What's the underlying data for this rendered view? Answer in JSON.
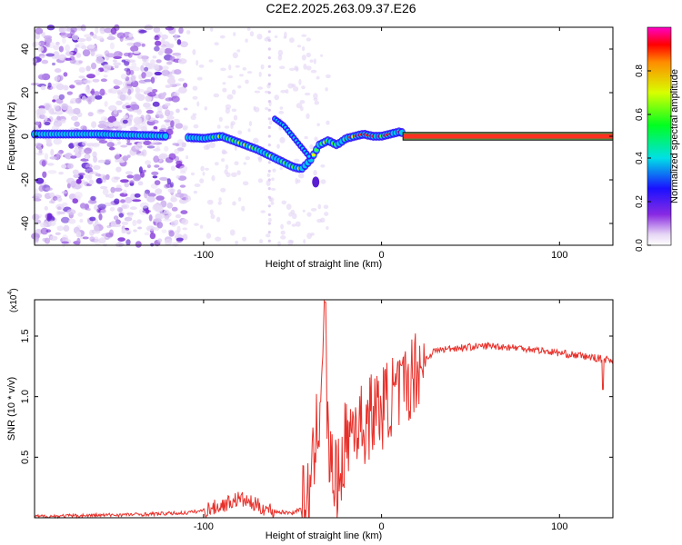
{
  "title": "C2E2.2025.263.09.37.E26",
  "colors": {
    "snr_line": "#e8302a",
    "strong_ridge": "#e82020",
    "frame": "#000000"
  },
  "chart_data": [
    {
      "type": "heatmap",
      "title": "C2E2.2025.263.09.37.E26",
      "xlabel": "Height of straight line (km)",
      "ylabel": "Frequency (Hz)",
      "xlim": [
        -195,
        130
      ],
      "ylim": [
        -50,
        50
      ],
      "xticks": [
        -100,
        0,
        100
      ],
      "yticks": [
        -40,
        -20,
        0,
        20,
        40
      ],
      "colorbar": {
        "label": "Normalized spectral amplitude",
        "range": [
          0,
          1
        ],
        "ticks": [
          "0.0",
          "0.2",
          "0.4",
          "0.6",
          "0.8"
        ],
        "colormap": "rainbow (violet to red)"
      },
      "ridge": {
        "note": "dominant frequency vs height (Hz)",
        "x": [
          -195,
          -160,
          -120,
          -100,
          -90,
          -80,
          -70,
          -60,
          -55,
          -50,
          -45,
          -40,
          -35,
          -30,
          -25,
          -20,
          -15,
          -10,
          -5,
          0,
          5,
          10,
          20,
          130
        ],
        "y": [
          1,
          1,
          0,
          -1,
          0,
          -3,
          -6,
          -10,
          -12,
          -14,
          -15,
          -11,
          -4,
          -2,
          -4,
          -1,
          0,
          1,
          0,
          0,
          1,
          2,
          0,
          0
        ]
      },
      "side_branch": {
        "x": [
          -60,
          -55,
          -50,
          -45,
          -40
        ],
        "y": [
          8,
          5,
          0,
          -5,
          -10
        ]
      },
      "isolated_blob": {
        "x": -37,
        "y": -21
      },
      "background_scatter_extent_km": [
        -195,
        -110
      ]
    },
    {
      "type": "line",
      "xlabel": "Height of straight line (km)",
      "ylabel": "SNR (10 * v/v)",
      "y_scale_label": "(x10",
      "y_scale_exponent": "4",
      "xlim": [
        -195,
        130
      ],
      "ylim": [
        0,
        1.8
      ],
      "xticks": [
        -100,
        0,
        100
      ],
      "yticks": [
        0.5,
        1.0,
        1.5
      ],
      "ytick_labels": [
        "0.5",
        "1.0",
        "1.5"
      ],
      "series": [
        {
          "name": "SNR",
          "x": [
            -195,
            -160,
            -130,
            -110,
            -100,
            -90,
            -80,
            -70,
            -60,
            -50,
            -45,
            -40,
            -35,
            -32,
            -30,
            -25,
            -20,
            -15,
            -10,
            -5,
            0,
            5,
            10,
            15,
            20,
            30,
            40,
            60,
            80,
            100,
            120,
            130
          ],
          "y": [
            0.01,
            0.02,
            0.03,
            0.04,
            0.06,
            0.1,
            0.16,
            0.1,
            0.05,
            0.04,
            0.08,
            0.2,
            0.9,
            1.75,
            0.55,
            0.25,
            0.65,
            0.8,
            0.75,
            0.88,
            0.9,
            1.0,
            1.02,
            1.12,
            1.25,
            1.38,
            1.4,
            1.42,
            1.4,
            1.36,
            1.32,
            1.3
          ]
        }
      ]
    }
  ]
}
